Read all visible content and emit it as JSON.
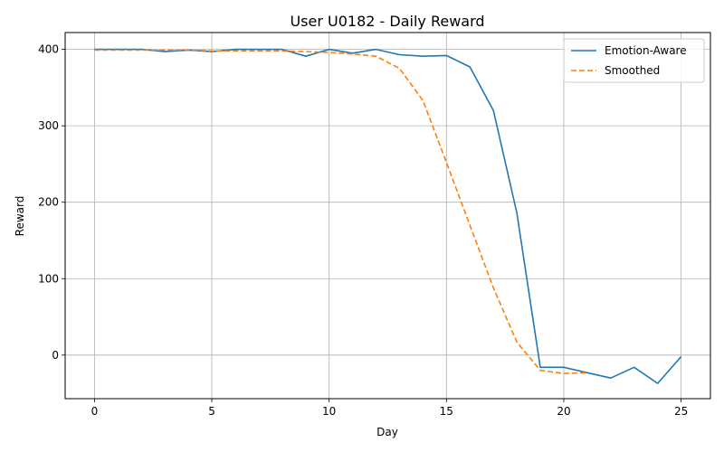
{
  "chart_data": {
    "type": "line",
    "title": "User U0182 - Daily Reward",
    "xlabel": "Day",
    "ylabel": "Reward",
    "xlim": [
      -1.25,
      26.25
    ],
    "ylim": [
      -57,
      422
    ],
    "xticks": [
      0,
      5,
      10,
      15,
      20,
      25
    ],
    "yticks": [
      0,
      100,
      200,
      300,
      400
    ],
    "grid": true,
    "legend_position": "top-right",
    "series": [
      {
        "name": "Emotion-Aware",
        "color": "#1f77b4",
        "style": "solid",
        "x": [
          0,
          1,
          2,
          3,
          4,
          5,
          6,
          7,
          8,
          9,
          10,
          11,
          12,
          13,
          14,
          15,
          16,
          17,
          18,
          19,
          20,
          21,
          22,
          23,
          24,
          25
        ],
        "y": [
          400,
          400,
          400,
          397,
          399,
          397,
          400,
          400,
          400,
          391,
          400,
          395,
          400,
          393,
          391,
          392,
          377,
          320,
          186,
          -16,
          -16,
          -23,
          -30,
          -16,
          -37,
          -2
        ]
      },
      {
        "name": "Smoothed",
        "color": "#ff7f0e",
        "style": "dashed",
        "x": [
          0,
          1,
          2,
          3,
          4,
          5,
          6,
          7,
          8,
          9,
          10,
          11,
          12,
          13,
          14,
          15,
          16,
          17,
          18,
          19,
          20,
          21
        ],
        "y": [
          399,
          399,
          399,
          399,
          399,
          398,
          398,
          398,
          398,
          397,
          396,
          394,
          391,
          375,
          333,
          252,
          170,
          88,
          17,
          -20,
          -24,
          -23
        ]
      }
    ]
  }
}
